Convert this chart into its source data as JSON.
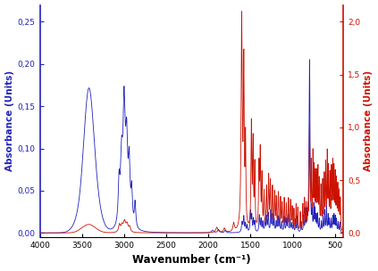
{
  "title": "",
  "xlabel": "Wavenumber (cm⁻¹)",
  "ylabel_left": "Absorbance (Units)",
  "ylabel_right": "Absorbance (Units)",
  "xlim": [
    4000,
    400
  ],
  "ylim_left": [
    -0.005,
    0.27
  ],
  "ylim_right": [
    -0.04,
    2.16
  ],
  "blue_color": "#2222bb",
  "red_color": "#cc1100",
  "background_color": "#ffffff",
  "xticks": [
    4000,
    3500,
    3000,
    2500,
    2000,
    1500,
    1000,
    500
  ],
  "yticks_left": [
    0.0,
    0.05,
    0.1,
    0.15,
    0.2,
    0.25
  ],
  "yticks_right": [
    0.0,
    0.5,
    1.0,
    1.5,
    2.0
  ],
  "ytick_labels_left": [
    "0,00",
    "0,05",
    "0,10",
    "0,15",
    "0,20",
    "0,25"
  ],
  "ytick_labels_right": [
    "0,0",
    "0,5",
    "1,0",
    "1,5",
    "2,0"
  ]
}
